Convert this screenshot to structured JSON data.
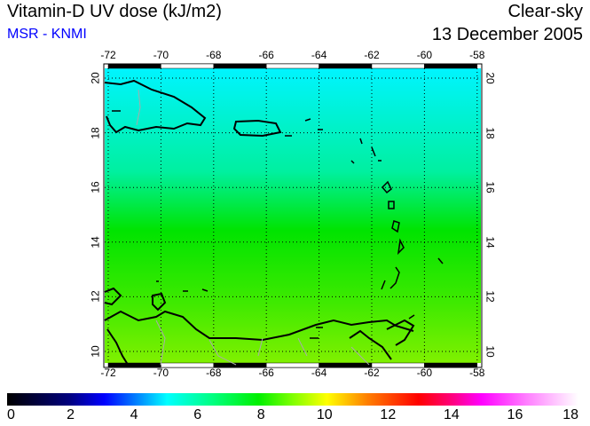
{
  "header": {
    "title": "Vitamin-D UV dose (kJ/m2)",
    "source": "MSR - KNMI",
    "sky": "Clear-sky",
    "date": "13 December 2005"
  },
  "map": {
    "lon_ticks": [
      "-72",
      "-70",
      "-68",
      "-66",
      "-64",
      "-62",
      "-60",
      "-58"
    ],
    "lat_ticks": [
      "20",
      "18",
      "16",
      "14",
      "12",
      "10"
    ],
    "colors": {
      "top": "#00f0ff",
      "middle": "#00e400",
      "bottom": "#80f000"
    }
  },
  "colorbar": {
    "labels": [
      "0",
      "2",
      "4",
      "6",
      "8",
      "10",
      "12",
      "14",
      "16",
      "18"
    ],
    "min": 0,
    "max": 18
  }
}
